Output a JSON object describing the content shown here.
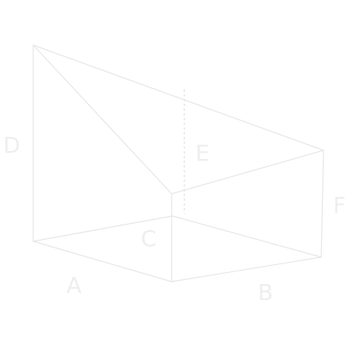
{
  "figure": {
    "background": "#ffffff",
    "line_color": "#e6e6e6",
    "label_color": "#eeeeee",
    "labels": {
      "a": "A",
      "b": "B",
      "c": "C",
      "d": "D",
      "e": "E",
      "f": "F"
    }
  }
}
